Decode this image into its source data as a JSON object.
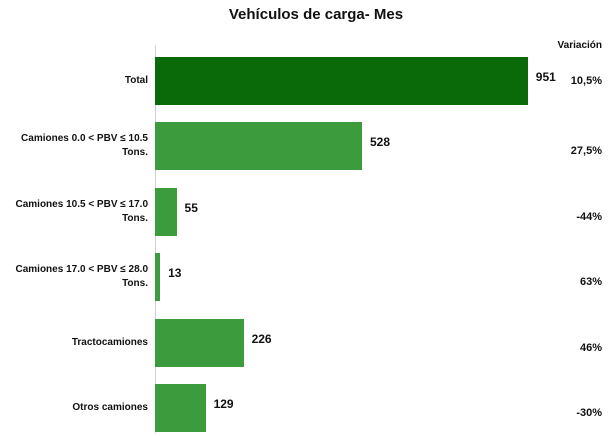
{
  "chart_data": {
    "type": "barh",
    "title": "Vehículos de carga- Mes",
    "categories": [
      "Total",
      "Camiones 0.0 < PBV ≤ 10.5 Tons.",
      "Camiones 10.5 < PBV ≤ 17.0 Tons.",
      "Camiones 17.0 < PBV ≤ 28.0 Tons.",
      "Tractocamiones",
      "Otros camiones"
    ],
    "values": [
      951,
      528,
      55,
      13,
      226,
      129
    ],
    "colors": [
      "#0a6a0a",
      "#3c9b3c",
      "#3c9b3c",
      "#3c9b3c",
      "#3c9b3c",
      "#3c9b3c"
    ],
    "xlim": [
      0,
      1000
    ],
    "variation_header": "Variación",
    "variations": [
      "10,5%",
      "27,5%",
      "-44%",
      "63%",
      "46%",
      "-30%"
    ]
  }
}
